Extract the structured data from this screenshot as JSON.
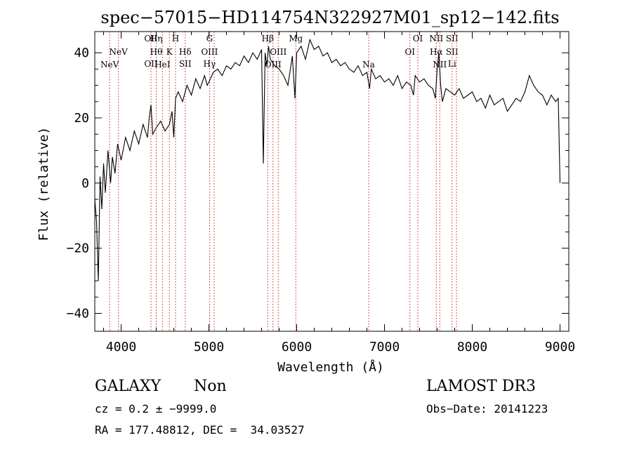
{
  "chart_data": {
    "type": "line",
    "title": "spec−57015−HD114754N322927M01_sp12−142.fits",
    "xlabel": "Wavelength (Å)",
    "ylabel": "Flux (relative)",
    "xlim": [
      3700,
      9100
    ],
    "ylim": [
      -45.5,
      46.5
    ],
    "xticks": [
      4000,
      5000,
      6000,
      7000,
      8000,
      9000
    ],
    "yticks": [
      -40,
      -20,
      0,
      20,
      40
    ],
    "grid": false,
    "series": [
      {
        "x": [
          3700,
          3720,
          3740,
          3760,
          3780,
          3800,
          3820,
          3850,
          3880,
          3900,
          3930,
          3960,
          4000,
          4050,
          4100,
          4150,
          4200,
          4250,
          4300,
          4320,
          4340,
          4360,
          4400,
          4450,
          4500,
          4550,
          4580,
          4600,
          4620,
          4650,
          4700,
          4750,
          4800,
          4850,
          4900,
          4950,
          4980,
          5000,
          5050,
          5100,
          5150,
          5200,
          5250,
          5300,
          5350,
          5400,
          5450,
          5500,
          5550,
          5600,
          5620,
          5640,
          5660,
          5680,
          5700,
          5750,
          5800,
          5850,
          5900,
          5950,
          5980,
          6000,
          6050,
          6100,
          6150,
          6200,
          6250,
          6300,
          6350,
          6400,
          6450,
          6500,
          6550,
          6600,
          6650,
          6700,
          6750,
          6800,
          6830,
          6850,
          6900,
          6950,
          7000,
          7050,
          7100,
          7150,
          7200,
          7250,
          7300,
          7330,
          7350,
          7400,
          7450,
          7500,
          7550,
          7580,
          7600,
          7620,
          7640,
          7660,
          7700,
          7750,
          7800,
          7850,
          7900,
          7950,
          8000,
          8050,
          8100,
          8150,
          8200,
          8250,
          8300,
          8350,
          8400,
          8450,
          8500,
          8550,
          8600,
          8650,
          8700,
          8750,
          8800,
          8850,
          8900,
          8950,
          8980,
          9000
        ],
        "values": [
          -5,
          -12,
          -30,
          2,
          -8,
          6,
          -3,
          10,
          0,
          8,
          3,
          12,
          7,
          14,
          10,
          16,
          12,
          18,
          14,
          20,
          24,
          15,
          17,
          19,
          16,
          18,
          22,
          14,
          26,
          28,
          25,
          30,
          27,
          32,
          29,
          33,
          30,
          31,
          34,
          35,
          33,
          36,
          35,
          37,
          36,
          39,
          37,
          40,
          38,
          41,
          6,
          40,
          36,
          42,
          38,
          36,
          35,
          33,
          30,
          39,
          26,
          40,
          42,
          38,
          44,
          41,
          42,
          39,
          40,
          37,
          38,
          36,
          37,
          35,
          34,
          36,
          33,
          34,
          29,
          35,
          32,
          33,
          31,
          32,
          30,
          33,
          29,
          31,
          30,
          27,
          33,
          31,
          32,
          30,
          29,
          26,
          35,
          40,
          30,
          25,
          29,
          28,
          27,
          29,
          26,
          27,
          28,
          25,
          26,
          23,
          27,
          24,
          25,
          26,
          22,
          24,
          26,
          25,
          28,
          33,
          30,
          28,
          27,
          24,
          27,
          25,
          26,
          0
        ]
      }
    ],
    "lines": [
      {
        "x": 3869,
        "labels": [
          "NeV"
        ],
        "row": "low"
      },
      {
        "x": 3969,
        "labels": [
          "NeV"
        ],
        "row": "mid"
      },
      {
        "x": 4340,
        "labels": [
          "OII",
          "OII"
        ],
        "row": "top-low"
      },
      {
        "x": 4400,
        "labels": [
          "Hη",
          "Hθ"
        ],
        "row": "top-mid"
      },
      {
        "x": 4471,
        "labels": [
          "HeI"
        ],
        "row": "low"
      },
      {
        "x": 4550,
        "labels": [
          "K"
        ],
        "row": "mid"
      },
      {
        "x": 4620,
        "labels": [
          "H"
        ],
        "row": "top"
      },
      {
        "x": 4730,
        "labels": [
          "Hδ",
          "SII"
        ],
        "row": "mid-low"
      },
      {
        "x": 5007,
        "labels": [
          "G",
          "OIII",
          "Hγ"
        ],
        "row": "stack"
      },
      {
        "x": 5060,
        "labels": [],
        "row": "none"
      },
      {
        "x": 5670,
        "labels": [
          "Hβ"
        ],
        "row": "top"
      },
      {
        "x": 5730,
        "labels": [
          "OIII"
        ],
        "row": "low"
      },
      {
        "x": 5790,
        "labels": [
          "OIII"
        ],
        "row": "mid"
      },
      {
        "x": 5990,
        "labels": [
          "Mg"
        ],
        "row": "top"
      },
      {
        "x": 6820,
        "labels": [
          "Na"
        ],
        "row": "low"
      },
      {
        "x": 7290,
        "labels": [
          "OI"
        ],
        "row": "mid"
      },
      {
        "x": 7380,
        "labels": [
          "OI"
        ],
        "row": "top"
      },
      {
        "x": 7590,
        "labels": [
          "NII",
          "Hα"
        ],
        "row": "top-mid"
      },
      {
        "x": 7630,
        "labels": [
          "NII"
        ],
        "row": "low"
      },
      {
        "x": 7770,
        "labels": [
          "SII",
          "SII",
          "Li"
        ],
        "row": "stack2"
      },
      {
        "x": 7820,
        "labels": [],
        "row": "none"
      }
    ]
  },
  "info": {
    "class": "GALAXY",
    "subclass": "Non",
    "survey": "LAMOST DR3",
    "cz": "cz = 0.2 ± −9999.0",
    "obs_date": "Obs−Date: 20141223",
    "coords": "RA = 177.48812, DEC =  34.03527"
  }
}
